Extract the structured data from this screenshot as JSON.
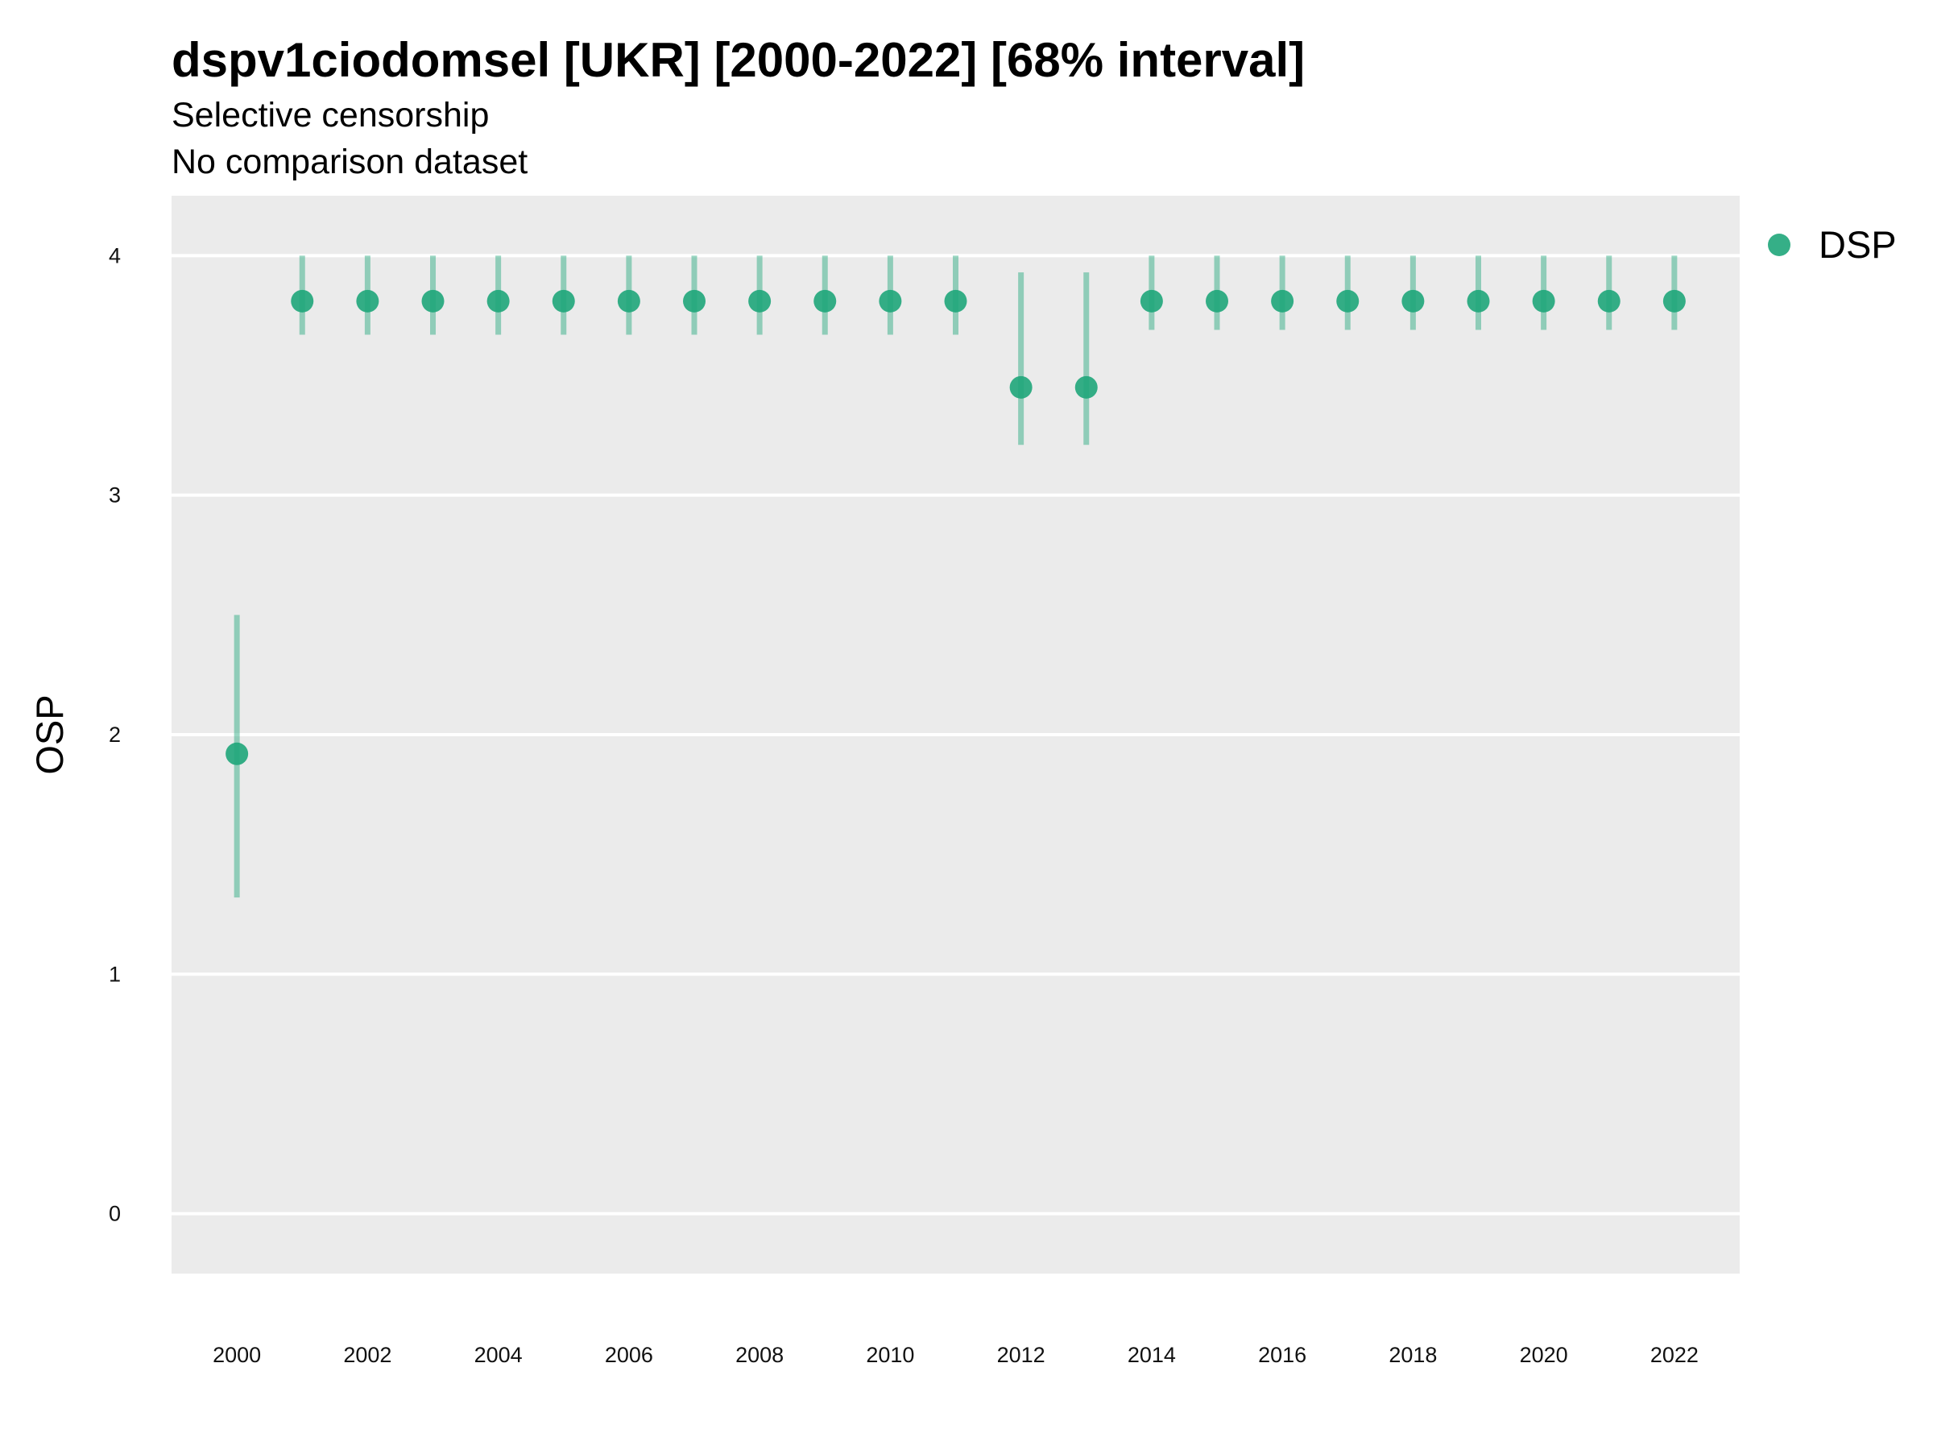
{
  "chart_data": {
    "type": "scatter",
    "title": "dspv1ciodomsel [UKR] [2000-2022] [68% interval]",
    "subtitle": "Selective censorship",
    "subtitle2": "No comparison dataset",
    "xlabel": "",
    "ylabel": "OSP",
    "xlim": [
      1999,
      2023
    ],
    "ylim": [
      -0.25,
      4.25
    ],
    "x_ticks": [
      "2000",
      "2002",
      "2004",
      "2006",
      "2008",
      "2010",
      "2012",
      "2014",
      "2016",
      "2018",
      "2020",
      "2022"
    ],
    "y_ticks": [
      "0",
      "1",
      "2",
      "3",
      "4"
    ],
    "grid": true,
    "legend_position": "top-right",
    "series": [
      {
        "name": "DSP",
        "color": "#1fa67a",
        "x": [
          2000,
          2001,
          2002,
          2003,
          2004,
          2005,
          2006,
          2007,
          2008,
          2009,
          2010,
          2011,
          2012,
          2013,
          2014,
          2015,
          2016,
          2017,
          2018,
          2019,
          2020,
          2021,
          2022
        ],
        "y": [
          1.92,
          3.81,
          3.81,
          3.81,
          3.81,
          3.81,
          3.81,
          3.81,
          3.81,
          3.81,
          3.81,
          3.81,
          3.45,
          3.45,
          3.81,
          3.81,
          3.81,
          3.81,
          3.81,
          3.81,
          3.81,
          3.81,
          3.81
        ],
        "lower": [
          1.32,
          3.67,
          3.67,
          3.67,
          3.67,
          3.67,
          3.67,
          3.67,
          3.67,
          3.67,
          3.67,
          3.67,
          3.21,
          3.21,
          3.69,
          3.69,
          3.69,
          3.69,
          3.69,
          3.69,
          3.69,
          3.69,
          3.69
        ],
        "upper": [
          2.5,
          4.0,
          4.0,
          4.0,
          4.0,
          4.0,
          4.0,
          4.0,
          4.0,
          4.0,
          4.0,
          4.0,
          3.93,
          3.93,
          4.0,
          4.0,
          4.0,
          4.0,
          4.0,
          4.0,
          4.0,
          4.0,
          4.0
        ]
      }
    ]
  }
}
